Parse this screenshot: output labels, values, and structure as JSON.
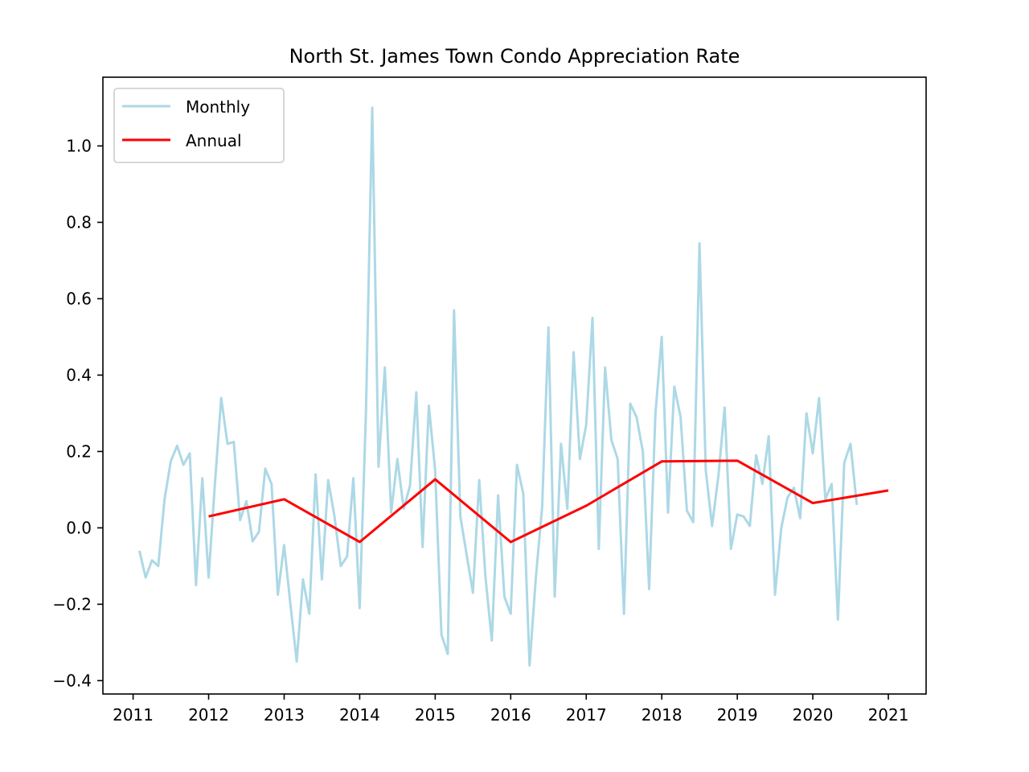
{
  "chart_data": {
    "type": "line",
    "title": "North St. James Town Condo Appreciation Rate",
    "xlabel": "",
    "ylabel": "",
    "xlim": [
      2010.6,
      2021.5
    ],
    "ylim": [
      -0.435,
      1.18
    ],
    "x_ticks": [
      2011,
      2012,
      2013,
      2014,
      2015,
      2016,
      2017,
      2018,
      2019,
      2020,
      2021
    ],
    "x_tick_labels": [
      "2011",
      "2012",
      "2013",
      "2014",
      "2015",
      "2016",
      "2017",
      "2018",
      "2019",
      "2020",
      "2021"
    ],
    "y_ticks": [
      -0.4,
      -0.2,
      0.0,
      0.2,
      0.4,
      0.6,
      0.8,
      1.0
    ],
    "y_tick_labels": [
      "−0.4",
      "−0.2",
      "0.0",
      "0.2",
      "0.4",
      "0.6",
      "0.8",
      "1.0"
    ],
    "legend_position": "upper-left",
    "grid": false,
    "series": [
      {
        "name": "Monthly",
        "color": "#add8e6",
        "start_year": 2011.083,
        "step_years": 0.08333,
        "values": [
          -0.06,
          -0.13,
          -0.085,
          -0.1,
          0.075,
          0.175,
          0.215,
          0.165,
          0.195,
          -0.15,
          0.13,
          -0.13,
          0.115,
          0.34,
          0.22,
          0.225,
          0.02,
          0.07,
          -0.035,
          -0.01,
          0.155,
          0.115,
          -0.175,
          -0.045,
          -0.2,
          -0.35,
          -0.135,
          -0.225,
          0.14,
          -0.135,
          0.125,
          0.03,
          -0.1,
          -0.075,
          0.13,
          -0.21,
          0.3,
          1.1,
          0.16,
          0.42,
          0.04,
          0.18,
          0.05,
          0.11,
          0.355,
          -0.05,
          0.32,
          0.15,
          -0.28,
          -0.33,
          0.57,
          0.03,
          -0.07,
          -0.17,
          0.125,
          -0.13,
          -0.295,
          0.085,
          -0.18,
          -0.225,
          0.165,
          0.09,
          -0.36,
          -0.13,
          0.055,
          0.525,
          -0.18,
          0.22,
          0.05,
          0.46,
          0.18,
          0.27,
          0.55,
          -0.055,
          0.42,
          0.23,
          0.18,
          -0.225,
          0.325,
          0.29,
          0.2,
          -0.16,
          0.3,
          0.5,
          0.04,
          0.37,
          0.29,
          0.045,
          0.015,
          0.745,
          0.15,
          0.005,
          0.135,
          0.315,
          -0.055,
          0.035,
          0.03,
          0.005,
          0.19,
          0.115,
          0.24,
          -0.175,
          0.0,
          0.08,
          0.105,
          0.025,
          0.3,
          0.195,
          0.34,
          0.075,
          0.115,
          -0.24,
          0.17,
          0.22,
          0.06
        ]
      },
      {
        "name": "Annual",
        "color": "#ff0000",
        "x": [
          2012,
          2013,
          2014,
          2015,
          2016,
          2017,
          2018,
          2019,
          2020,
          2021
        ],
        "values": [
          0.03,
          0.075,
          -0.037,
          0.127,
          -0.037,
          0.058,
          0.174,
          0.176,
          0.065,
          0.098
        ]
      }
    ]
  }
}
